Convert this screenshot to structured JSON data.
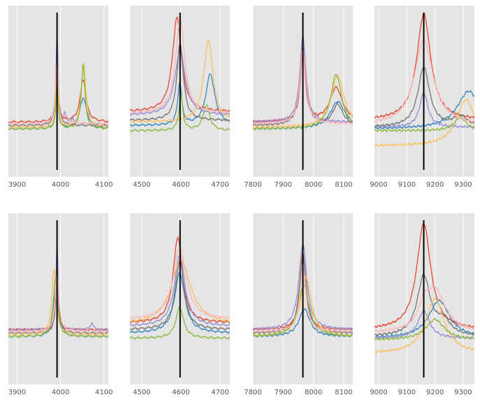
{
  "colors": {
    "background": "#e5e5e5",
    "grid": "#ffffff",
    "marker": "#000000",
    "series": [
      "#e24a33",
      "#348abd",
      "#988ed5",
      "#777777",
      "#fbc15e",
      "#8eba42",
      "#ffb5b8"
    ]
  },
  "chart_data": [
    {
      "type": "line",
      "row": 0,
      "col": 0,
      "xlim": [
        3880,
        4110
      ],
      "xticks": [
        3900,
        4000,
        4100
      ],
      "xtick_labels": [
        "3900",
        "4000",
        "4100"
      ],
      "marker_x": 3992,
      "series": [
        {
          "name": "s1",
          "color": "#e24a33",
          "base": 0.32,
          "peaks": [
            [
              3992,
              0.45,
              3
            ],
            [
              4052,
              0.25,
              8
            ]
          ]
        },
        {
          "name": "s2",
          "color": "#348abd",
          "base": 0.28,
          "peaks": [
            [
              3992,
              0.3,
              3
            ],
            [
              4052,
              0.18,
              10
            ]
          ]
        },
        {
          "name": "s3",
          "color": "#988ed5",
          "base": 0.31,
          "peaks": [
            [
              3992,
              0.52,
              3
            ],
            [
              4010,
              0.06,
              3
            ],
            [
              4028,
              0.04,
              2
            ]
          ]
        },
        {
          "name": "s4",
          "color": "#777777",
          "base": 0.3,
          "peaks": [
            [
              3992,
              0.4,
              4
            ]
          ]
        },
        {
          "name": "s5",
          "color": "#fbc15e",
          "base": 0.29,
          "peaks": [
            [
              3992,
              0.35,
              3
            ],
            [
              4053,
              0.38,
              6
            ]
          ]
        },
        {
          "name": "s6",
          "color": "#8eba42",
          "base": 0.28,
          "peaks": [
            [
              3992,
              0.28,
              3
            ],
            [
              4052,
              0.38,
              5
            ]
          ]
        },
        {
          "name": "s7",
          "color": "#ffb5b8",
          "base": 0.31,
          "peaks": [
            [
              3992,
              0.38,
              4
            ],
            [
              4012,
              0.04,
              5
            ]
          ]
        }
      ]
    },
    {
      "type": "line",
      "row": 0,
      "col": 1,
      "xlim": [
        4470,
        4725
      ],
      "xticks": [
        4500,
        4600,
        4700
      ],
      "xtick_labels": [
        "4500",
        "4600",
        "4700"
      ],
      "marker_x": 4598,
      "series": [
        {
          "name": "s1",
          "color": "#e24a33",
          "base": 0.38,
          "peaks": [
            [
              4590,
              0.55,
              14
            ]
          ]
        },
        {
          "name": "s2",
          "color": "#348abd",
          "base": 0.3,
          "peaks": [
            [
              4597,
              0.25,
              6
            ],
            [
              4675,
              0.3,
              14
            ]
          ]
        },
        {
          "name": "s3",
          "color": "#988ed5",
          "base": 0.36,
          "peaks": [
            [
              4598,
              0.38,
              16
            ]
          ]
        },
        {
          "name": "s4",
          "color": "#777777",
          "base": 0.33,
          "peaks": [
            [
              4598,
              0.45,
              10
            ]
          ]
        },
        {
          "name": "s5",
          "color": "#fbc15e",
          "base": 0.32,
          "peaks": [
            [
              4670,
              0.48,
              14
            ]
          ]
        },
        {
          "name": "s6",
          "color": "#8eba42",
          "base": 0.27,
          "peaks": [
            [
              4600,
              0.2,
              6
            ],
            [
              4665,
              0.15,
              10
            ]
          ]
        },
        {
          "name": "s7",
          "color": "#ffb5b8",
          "base": 0.37,
          "peaks": [
            [
              4598,
              0.55,
              14
            ]
          ]
        }
      ]
    },
    {
      "type": "line",
      "row": 0,
      "col": 2,
      "xlim": [
        7800,
        8130
      ],
      "xticks": [
        7800,
        7900,
        8000,
        8100
      ],
      "xtick_labels": [
        "7800",
        "7900",
        "8000",
        "8100"
      ],
      "marker_x": 7965,
      "series": [
        {
          "name": "s1",
          "color": "#e24a33",
          "base": 0.32,
          "peaks": [
            [
              7965,
              0.42,
              10
            ],
            [
              8075,
              0.2,
              25
            ]
          ]
        },
        {
          "name": "s2",
          "color": "#348abd",
          "base": 0.28,
          "peaks": [
            [
              8080,
              0.16,
              30
            ]
          ]
        },
        {
          "name": "s3",
          "color": "#988ed5",
          "base": 0.32,
          "peaks": [
            [
              7965,
              0.5,
              12
            ]
          ]
        },
        {
          "name": "s4",
          "color": "#777777",
          "base": 0.3,
          "peaks": [
            [
              7965,
              0.46,
              12
            ],
            [
              8080,
              0.12,
              20
            ]
          ]
        },
        {
          "name": "s5",
          "color": "#fbc15e",
          "base": 0.29,
          "peaks": [
            [
              8080,
              0.3,
              25
            ]
          ]
        },
        {
          "name": "s6",
          "color": "#8eba42",
          "base": 0.28,
          "peaks": [
            [
              8075,
              0.32,
              22
            ]
          ]
        },
        {
          "name": "s7",
          "color": "#ffb5b8",
          "base": 0.31,
          "peaks": [
            [
              7965,
              0.44,
              12
            ]
          ]
        }
      ]
    },
    {
      "type": "line",
      "row": 0,
      "col": 3,
      "xlim": [
        8985,
        9340
      ],
      "xticks": [
        9000,
        9100,
        9200,
        9300
      ],
      "xtick_labels": [
        "9000",
        "9100",
        "9200",
        "9300"
      ],
      "marker_x": 9160,
      "series": [
        {
          "name": "s1",
          "color": "#e24a33",
          "base": 0.33,
          "peaks": [
            [
              9160,
              0.62,
              30
            ]
          ]
        },
        {
          "name": "s2",
          "color": "#348abd",
          "base": 0.28,
          "peaks": [
            [
              9320,
              0.22,
              50
            ]
          ]
        },
        {
          "name": "s3",
          "color": "#988ed5",
          "base": 0.29,
          "peaks": [
            [
              9160,
              0.2,
              18
            ]
          ]
        },
        {
          "name": "s4",
          "color": "#777777",
          "base": 0.29,
          "peaks": [
            [
              9160,
              0.35,
              25
            ],
            [
              9290,
              0.06,
              30
            ]
          ]
        },
        {
          "name": "s5",
          "color": "#fbc15e",
          "base": 0.18,
          "peaks": [
            [
              9310,
              0.27,
              40
            ]
          ]
        },
        {
          "name": "s6",
          "color": "#8eba42",
          "base": 0.27,
          "peaks": [
            [
              9290,
              0.08,
              25
            ]
          ]
        },
        {
          "name": "s7",
          "color": "#ffb5b8",
          "base": 0.3,
          "peaks": [
            [
              9160,
              0.5,
              40
            ]
          ]
        }
      ]
    },
    {
      "type": "line",
      "row": 1,
      "col": 0,
      "xlim": [
        3880,
        4110
      ],
      "xticks": [
        3900,
        4000,
        4100
      ],
      "xtick_labels": [
        "3900",
        "4000",
        "4100"
      ],
      "marker_x": 3992,
      "series": [
        {
          "name": "s1",
          "color": "#e24a33",
          "base": 0.32,
          "peaks": [
            [
              3992,
              0.4,
              3
            ]
          ]
        },
        {
          "name": "s2",
          "color": "#348abd",
          "base": 0.28,
          "peaks": [
            [
              3992,
              0.35,
              4
            ],
            [
              3985,
              0.12,
              6
            ]
          ]
        },
        {
          "name": "s3",
          "color": "#988ed5",
          "base": 0.32,
          "peaks": [
            [
              3992,
              0.5,
              3
            ],
            [
              4072,
              0.04,
              4
            ]
          ]
        },
        {
          "name": "s4",
          "color": "#777777",
          "base": 0.3,
          "peaks": [
            [
              3992,
              0.38,
              4
            ]
          ]
        },
        {
          "name": "s5",
          "color": "#fbc15e",
          "base": 0.29,
          "peaks": [
            [
              3985,
              0.38,
              6
            ]
          ]
        },
        {
          "name": "s6",
          "color": "#8eba42",
          "base": 0.28,
          "peaks": [
            [
              3988,
              0.34,
              6
            ]
          ]
        },
        {
          "name": "s7",
          "color": "#ffb5b8",
          "base": 0.31,
          "peaks": [
            [
              3992,
              0.34,
              5
            ]
          ]
        }
      ]
    },
    {
      "type": "line",
      "row": 1,
      "col": 1,
      "xlim": [
        4470,
        4725
      ],
      "xticks": [
        4500,
        4600,
        4700
      ],
      "xtick_labels": [
        "4500",
        "4600",
        "4700"
      ],
      "marker_x": 4598,
      "series": [
        {
          "name": "s1",
          "color": "#e24a33",
          "base": 0.36,
          "peaks": [
            [
              4592,
              0.5,
              14
            ]
          ]
        },
        {
          "name": "s2",
          "color": "#348abd",
          "base": 0.3,
          "peaks": [
            [
              4597,
              0.35,
              16
            ]
          ]
        },
        {
          "name": "s3",
          "color": "#988ed5",
          "base": 0.34,
          "peaks": [
            [
              4597,
              0.42,
              16
            ]
          ]
        },
        {
          "name": "s4",
          "color": "#777777",
          "base": 0.32,
          "peaks": [
            [
              4597,
              0.4,
              14
            ]
          ]
        },
        {
          "name": "s5",
          "color": "#fbc15e",
          "base": 0.35,
          "peaks": [
            [
              4600,
              0.38,
              30
            ]
          ]
        },
        {
          "name": "s6",
          "color": "#8eba42",
          "base": 0.27,
          "peaks": [
            [
              4597,
              0.18,
              12
            ]
          ]
        },
        {
          "name": "s7",
          "color": "#ffb5b8",
          "base": 0.38,
          "peaks": [
            [
              4597,
              0.42,
              20
            ]
          ]
        }
      ]
    },
    {
      "type": "line",
      "row": 1,
      "col": 2,
      "xlim": [
        7800,
        8130
      ],
      "xticks": [
        7800,
        7900,
        8000,
        8100
      ],
      "xtick_labels": [
        "7800",
        "7900",
        "8000",
        "8100"
      ],
      "marker_x": 7965,
      "series": [
        {
          "name": "s1",
          "color": "#e24a33",
          "base": 0.32,
          "peaks": [
            [
              7965,
              0.45,
              12
            ]
          ]
        },
        {
          "name": "s2",
          "color": "#348abd",
          "base": 0.28,
          "peaks": [
            [
              7970,
              0.16,
              22
            ]
          ]
        },
        {
          "name": "s3",
          "color": "#988ed5",
          "base": 0.32,
          "peaks": [
            [
              7965,
              0.5,
              16
            ]
          ]
        },
        {
          "name": "s4",
          "color": "#777777",
          "base": 0.3,
          "peaks": [
            [
              7965,
              0.45,
              14
            ]
          ]
        },
        {
          "name": "s5",
          "color": "#fbc15e",
          "base": 0.28,
          "peaks": [
            [
              7975,
              0.35,
              22
            ]
          ]
        },
        {
          "name": "s6",
          "color": "#8eba42",
          "base": 0.28,
          "peaks": [
            [
              7968,
              0.3,
              22
            ]
          ]
        },
        {
          "name": "s7",
          "color": "#ffb5b8",
          "base": 0.31,
          "peaks": [
            [
              7965,
              0.38,
              12
            ]
          ]
        }
      ]
    },
    {
      "type": "line",
      "row": 1,
      "col": 3,
      "xlim": [
        8985,
        9340
      ],
      "xticks": [
        9000,
        9100,
        9200,
        9300
      ],
      "xtick_labels": [
        "9000",
        "9100",
        "9200",
        "9300"
      ],
      "marker_x": 9160,
      "series": [
        {
          "name": "s1",
          "color": "#e24a33",
          "base": 0.32,
          "peaks": [
            [
              9160,
              0.62,
              30
            ]
          ]
        },
        {
          "name": "s2",
          "color": "#348abd",
          "base": 0.27,
          "peaks": [
            [
              9215,
              0.22,
              45
            ]
          ]
        },
        {
          "name": "s3",
          "color": "#988ed5",
          "base": 0.27,
          "peaks": [
            [
              9160,
              0.16,
              25
            ]
          ]
        },
        {
          "name": "s4",
          "color": "#777777",
          "base": 0.28,
          "peaks": [
            [
              9160,
              0.35,
              28
            ],
            [
              9230,
              0.08,
              30
            ]
          ]
        },
        {
          "name": "s5",
          "color": "#fbc15e",
          "base": 0.18,
          "peaks": [
            [
              9200,
              0.32,
              40
            ]
          ]
        },
        {
          "name": "s6",
          "color": "#8eba42",
          "base": 0.26,
          "peaks": [
            [
              9200,
              0.12,
              40
            ]
          ]
        },
        {
          "name": "s7",
          "color": "#ffb5b8",
          "base": 0.3,
          "peaks": [
            [
              9200,
              0.25,
              45
            ],
            [
              9160,
              0.1,
              20
            ]
          ]
        }
      ]
    }
  ]
}
